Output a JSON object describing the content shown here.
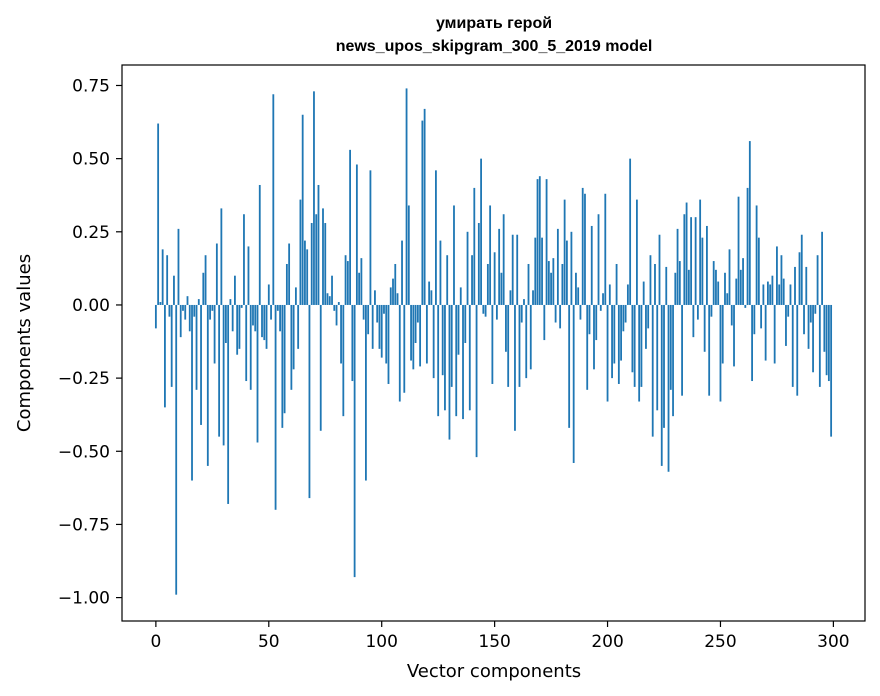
{
  "chart_data": {
    "type": "bar",
    "title_line1": "умирать герой",
    "title_line2": "news_upos_skipgram_300_5_2019 model",
    "xlabel": "Vector components",
    "ylabel": "Components values",
    "xlim": [
      -15,
      314
    ],
    "ylim": [
      -1.08,
      0.82
    ],
    "x_ticks": [
      0,
      50,
      100,
      150,
      200,
      250,
      300
    ],
    "y_ticks": [
      0.75,
      0.5,
      0.25,
      0.0,
      -0.25,
      -0.5,
      -0.75,
      -1.0
    ],
    "x_tick_labels": [
      "0",
      "50",
      "100",
      "150",
      "200",
      "250",
      "300"
    ],
    "y_tick_labels": [
      "0.75",
      "0.50",
      "0.25",
      "0.00",
      "−0.25",
      "−0.50",
      "−0.75",
      "−1.00"
    ],
    "grid": false,
    "bar_color": "#1f77b4",
    "values": [
      -0.08,
      0.62,
      0.01,
      0.19,
      -0.35,
      0.17,
      -0.04,
      -0.28,
      0.1,
      -0.99,
      0.26,
      -0.11,
      -0.02,
      -0.05,
      0.03,
      -0.09,
      -0.6,
      -0.04,
      -0.29,
      0.02,
      -0.41,
      0.11,
      0.17,
      -0.55,
      -0.05,
      -0.02,
      -0.2,
      0.21,
      -0.45,
      0.33,
      -0.48,
      -0.13,
      -0.68,
      0.02,
      -0.09,
      0.1,
      -0.17,
      -0.15,
      -0.01,
      0.31,
      -0.26,
      0.2,
      -0.29,
      -0.07,
      -0.09,
      -0.47,
      0.41,
      -0.11,
      -0.12,
      -0.15,
      0.07,
      -0.05,
      0.72,
      -0.7,
      -0.02,
      -0.09,
      -0.42,
      -0.37,
      0.14,
      0.21,
      -0.29,
      -0.22,
      0.06,
      -0.15,
      0.36,
      0.65,
      0.22,
      0.19,
      -0.66,
      0.28,
      0.73,
      0.31,
      0.41,
      -0.43,
      0.33,
      0.28,
      0.04,
      0.03,
      0.1,
      -0.02,
      -0.07,
      0.01,
      -0.2,
      -0.38,
      0.17,
      0.15,
      0.53,
      -0.26,
      -0.93,
      0.48,
      0.11,
      0.16,
      -0.05,
      -0.6,
      -0.1,
      0.46,
      -0.15,
      0.05,
      -0.06,
      -0.15,
      -0.18,
      -0.03,
      -0.2,
      -0.27,
      0.06,
      0.09,
      0.14,
      0.04,
      -0.33,
      0.22,
      -0.3,
      0.74,
      0.34,
      -0.19,
      -0.22,
      -0.13,
      -0.06,
      -0.21,
      0.63,
      0.67,
      -0.2,
      0.08,
      0.05,
      -0.25,
      0.46,
      -0.38,
      0.22,
      -0.24,
      -0.36,
      0.17,
      -0.46,
      -0.28,
      0.34,
      -0.38,
      -0.17,
      0.06,
      -0.39,
      -0.13,
      0.25,
      -0.36,
      0.17,
      0.4,
      -0.52,
      0.28,
      0.5,
      -0.03,
      -0.04,
      0.14,
      0.34,
      -0.27,
      0.18,
      -0.05,
      0.26,
      0.11,
      0.31,
      -0.16,
      -0.28,
      0.05,
      0.24,
      -0.43,
      0.24,
      -0.28,
      -0.06,
      0.02,
      -0.25,
      0.14,
      -0.22,
      0.05,
      0.23,
      0.43,
      0.44,
      0.23,
      -0.12,
      0.43,
      0.15,
      0.11,
      0.16,
      -0.06,
      0.26,
      -0.08,
      0.14,
      0.36,
      0.22,
      -0.42,
      0.25,
      -0.54,
      0.11,
      0.06,
      -0.05,
      0.4,
      0.38,
      -0.29,
      -0.1,
      0.27,
      -0.22,
      -0.12,
      0.31,
      -0.02,
      0.04,
      0.38,
      -0.33,
      0.07,
      -0.25,
      -0.2,
      0.14,
      -0.27,
      -0.19,
      -0.09,
      -0.06,
      0.07,
      0.5,
      -0.23,
      -0.28,
      0.36,
      -0.33,
      -0.28,
      0.08,
      -0.15,
      -0.08,
      0.17,
      -0.45,
      0.14,
      -0.36,
      0.24,
      -0.55,
      -0.42,
      0.13,
      -0.57,
      -0.29,
      -0.38,
      0.11,
      0.26,
      0.15,
      -0.31,
      0.31,
      0.35,
      0.12,
      0.3,
      -0.11,
      0.3,
      -0.05,
      0.36,
      0.23,
      -0.16,
      0.27,
      -0.31,
      -0.04,
      0.15,
      0.12,
      0.08,
      -0.33,
      -0.2,
      0.11,
      0.04,
      0.19,
      -0.07,
      -0.21,
      0.09,
      0.37,
      0.12,
      0.16,
      -0.01,
      0.4,
      0.56,
      -0.26,
      -0.1,
      0.34,
      0.23,
      -0.08,
      0.07,
      -0.19,
      0.08,
      0.07,
      0.1,
      -0.2,
      0.2,
      0.07,
      0.17,
      0.09,
      -0.14,
      -0.04,
      0.07,
      -0.28,
      0.13,
      -0.31,
      0.18,
      0.24,
      -0.1,
      0.13,
      -0.15,
      -0.06,
      -0.23,
      -0.03,
      0.17,
      -0.28,
      0.25,
      -0.16,
      -0.24,
      -0.26,
      -0.45
    ]
  }
}
